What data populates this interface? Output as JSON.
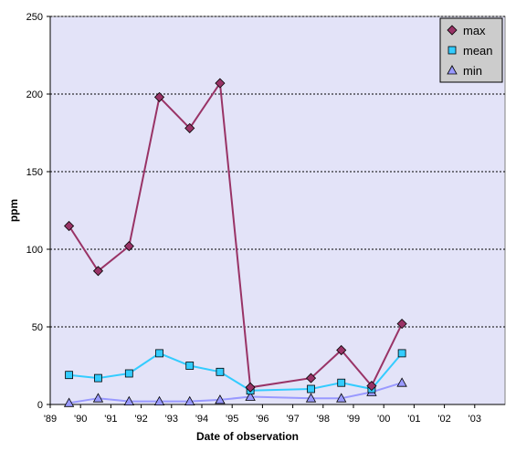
{
  "chart_data": {
    "type": "line",
    "title": "",
    "xlabel": "Date of observation",
    "ylabel": "ppm",
    "ylim": [
      0,
      250
    ],
    "xlim": [
      1989,
      2004
    ],
    "grid": "horizontal",
    "legend_position": "top-right",
    "x_ticks": [
      1989,
      1990,
      1991,
      1992,
      1993,
      1994,
      1995,
      1996,
      1997,
      1998,
      1999,
      2000,
      2001,
      2002,
      2003
    ],
    "x_tick_labels": [
      "'89",
      "'90",
      "'91",
      "'92",
      "'93",
      "'94",
      "'95",
      "'96",
      "'97",
      "'98",
      "'99",
      "'00",
      "'01",
      "'02",
      "'03"
    ],
    "y_ticks": [
      0,
      50,
      100,
      150,
      200,
      250
    ],
    "y_tick_labels": [
      "0",
      "50",
      "100",
      "150",
      "200",
      "250"
    ],
    "series": [
      {
        "name": "max",
        "color": "#993366",
        "marker": "diamond",
        "x": [
          1989.62,
          1990.58,
          1991.6,
          1992.6,
          1993.6,
          1994.6,
          1995.6,
          1997.6,
          1998.6,
          1999.6,
          2000.6
        ],
        "values": [
          115,
          86,
          102,
          198,
          178,
          207,
          11,
          17,
          35,
          12,
          52
        ]
      },
      {
        "name": "mean",
        "color": "#33ccff",
        "marker": "square",
        "x": [
          1989.62,
          1990.58,
          1991.6,
          1992.6,
          1993.6,
          1994.6,
          1995.6,
          1997.6,
          1998.6,
          1999.6,
          2000.6
        ],
        "values": [
          19,
          17,
          20,
          33,
          25,
          21,
          9,
          10,
          14,
          10,
          33
        ]
      },
      {
        "name": "min",
        "color": "#9999ff",
        "marker": "triangle",
        "x": [
          1989.62,
          1990.58,
          1991.6,
          1992.6,
          1993.6,
          1994.6,
          1995.6,
          1997.6,
          1998.6,
          1999.6,
          2000.6
        ],
        "values": [
          1,
          4,
          2,
          2,
          2,
          3,
          5,
          4,
          4,
          8,
          14
        ]
      }
    ]
  },
  "colors": {
    "plot_background": "#e3e3f8",
    "legend_background": "#cccccc",
    "grid": "#000000"
  }
}
